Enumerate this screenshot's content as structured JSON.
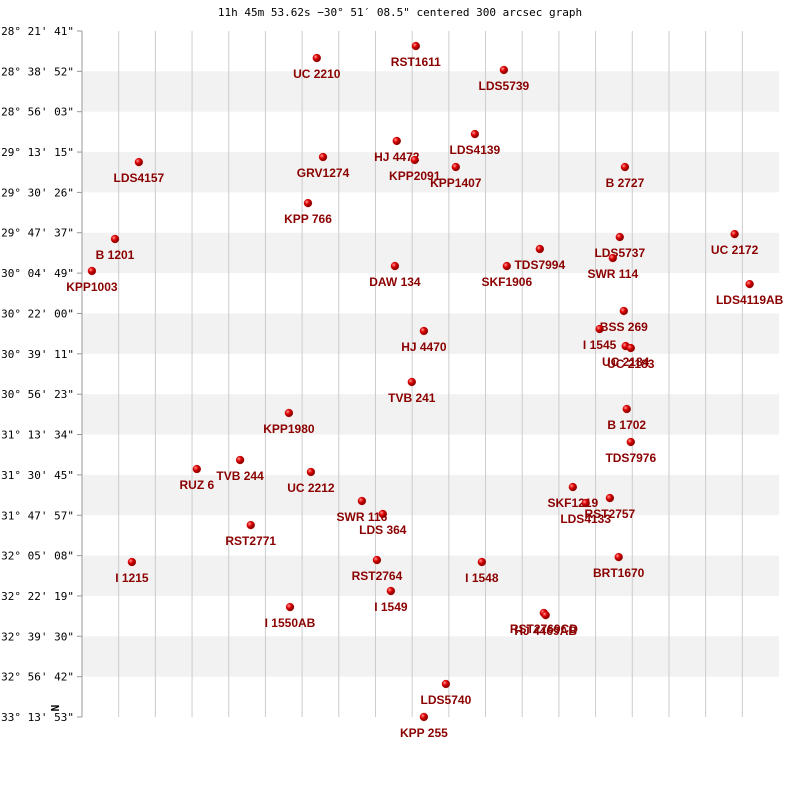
{
  "chart_data": {
    "type": "scatter",
    "title": "11h 45m 53.62s −30° 51′ 08.5\" centered 300 arcsec graph",
    "axis_mark": "N",
    "color": "#cc0000",
    "label_color": "#8b0000",
    "grid": true,
    "xlim": [
      0,
      19
    ],
    "xticks": [
      1,
      2,
      3,
      4,
      5,
      6,
      7,
      8,
      9,
      10,
      11,
      12,
      13,
      14,
      15,
      16,
      17,
      18
    ],
    "ylim": [
      -33.2314,
      -28.3614
    ],
    "yticks": [
      {
        "value": -28.3614,
        "label": "-28° 21' 41\""
      },
      {
        "value": -28.6478,
        "label": "-28° 38' 52\""
      },
      {
        "value": -28.9342,
        "label": "-28° 56' 03\""
      },
      {
        "value": -29.2208,
        "label": "-29° 13' 15\""
      },
      {
        "value": -29.5072,
        "label": "-29° 30' 26\""
      },
      {
        "value": -29.7936,
        "label": "-29° 47' 37\""
      },
      {
        "value": -30.0803,
        "label": "-30° 04' 49\""
      },
      {
        "value": -30.3667,
        "label": "-30° 22' 00\""
      },
      {
        "value": -30.6531,
        "label": "-30° 39' 11\""
      },
      {
        "value": -30.9397,
        "label": "-30° 56' 23\""
      },
      {
        "value": -31.2261,
        "label": "-31° 13' 34\""
      },
      {
        "value": -31.5125,
        "label": "-31° 30' 45\""
      },
      {
        "value": -31.7992,
        "label": "-31° 47' 57\""
      },
      {
        "value": -32.0856,
        "label": "-32° 05' 08\""
      },
      {
        "value": -32.3719,
        "label": "-32° 22' 19\""
      },
      {
        "value": -32.6583,
        "label": "-32° 39' 30\""
      },
      {
        "value": -32.945,
        "label": "-32° 56' 42\""
      },
      {
        "value": -33.2314,
        "label": "-33° 13' 53\""
      }
    ],
    "labels": [
      "UC 2210",
      "RST1611",
      "LDS5739",
      "HJ 4472",
      "LDS4139",
      "GRV1274",
      "KPP2091",
      "KPP1407",
      "LDS4157",
      "B  2727",
      "KPP 766",
      "B  1201",
      "LDS5737",
      "UC 2172",
      "TDS7994",
      "SWR 114",
      "DAW 134",
      "SKF1906",
      "KPP1003",
      "LDS4119AB",
      "BSS 269",
      "I  1545",
      "HJ 4470",
      "UC 2184",
      "UC 2183",
      "TVB 241",
      "B  1702",
      "KPP1980",
      "TDS7976",
      "TVB 244",
      "RUZ   6",
      "UC 2212",
      "SKF1219",
      "RST2757",
      "SWR 116",
      "LDS 364",
      "LDS4133",
      "RST2771",
      "I  1215",
      "RST2764",
      "I  1548",
      "BRT1670",
      "I  1549",
      "I  1550AB",
      "RST2769CD",
      "HJ 4469AB",
      "LDS5740",
      "KPP 255"
    ],
    "x": [
      6.4,
      9.1,
      11.5,
      8.58,
      10.71,
      6.57,
      9.07,
      10.19,
      1.55,
      14.8,
      6.16,
      0.9,
      14.66,
      17.79,
      12.48,
      14.47,
      8.53,
      11.58,
      0.27,
      18.2,
      14.77,
      14.11,
      9.32,
      14.82,
      14.96,
      8.99,
      14.85,
      5.64,
      14.96,
      4.31,
      3.13,
      6.24,
      13.38,
      14.39,
      7.63,
      8.2,
      13.73,
      4.6,
      1.36,
      8.04,
      10.9,
      14.63,
      8.42,
      5.67,
      12.59,
      12.64,
      9.92,
      9.32
    ],
    "values": [
      -28.553,
      -28.468,
      -28.638,
      -29.142,
      -29.093,
      -29.256,
      -29.277,
      -29.327,
      -29.292,
      -29.327,
      -29.583,
      -29.838,
      -29.824,
      -29.803,
      -29.909,
      -29.973,
      -30.03,
      -30.03,
      -30.065,
      -30.158,
      -30.349,
      -30.477,
      -30.491,
      -30.598,
      -30.612,
      -30.853,
      -31.045,
      -31.073,
      -31.279,
      -31.407,
      -31.471,
      -31.492,
      -31.599,
      -31.677,
      -31.698,
      -31.79,
      -31.712,
      -31.869,
      -32.131,
      -32.117,
      -32.131,
      -32.096,
      -32.337,
      -32.451,
      -32.493,
      -32.508,
      -32.997,
      -33.231
    ]
  }
}
